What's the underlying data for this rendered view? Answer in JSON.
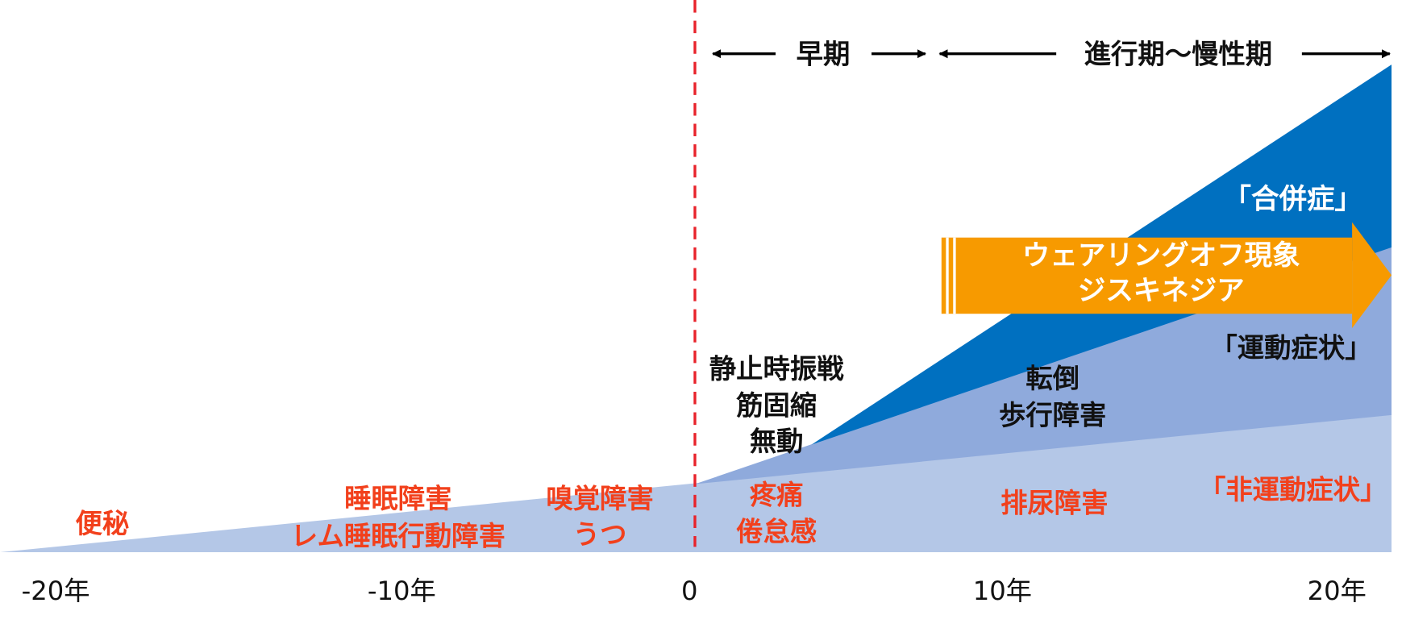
{
  "phases": [
    "早期",
    "進行期～慢性期"
  ],
  "axis_labels": [
    "-20年",
    "-10年",
    "0",
    "10年",
    "20年"
  ],
  "categories": {
    "complications": "「合併症」",
    "motor": "「運動症状」",
    "non_motor": "「非運動症状」"
  },
  "arrow": {
    "lines": [
      "ウェアリングオフ現象",
      "ジスキネジア"
    ]
  },
  "motor_symptoms": {
    "onset": [
      "静止時振戦",
      "筋固縮",
      "無動"
    ],
    "later": [
      "転倒",
      "歩行障害"
    ]
  },
  "non_motor_symptoms": [
    {
      "lines": [
        "便秘"
      ]
    },
    {
      "lines": [
        "睡眠障害",
        "レム睡眠行動障害"
      ]
    },
    {
      "lines": [
        "嗅覚障害",
        "うつ"
      ]
    },
    {
      "lines": [
        "疼痛",
        "倦怠感"
      ]
    },
    {
      "lines": [
        "排尿障害"
      ]
    }
  ]
}
